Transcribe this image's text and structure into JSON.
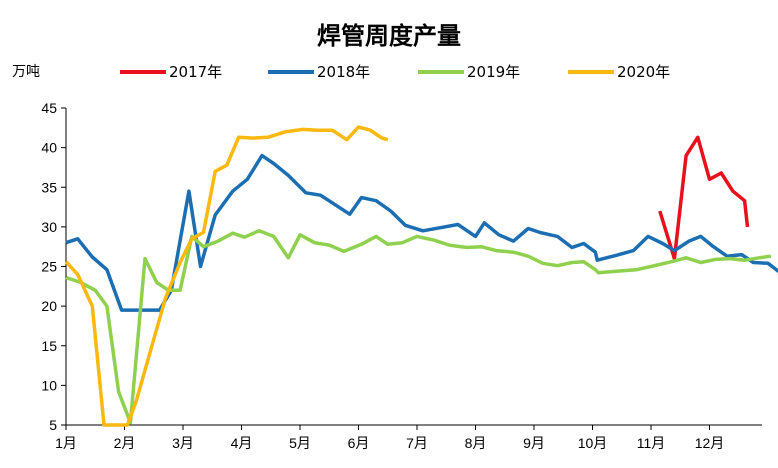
{
  "chart_data": {
    "type": "line",
    "title": "焊管周度产量",
    "ylabel": "万吨",
    "xlabel": "",
    "ylim": [
      5,
      45
    ],
    "yticks": [
      5,
      10,
      15,
      20,
      25,
      30,
      35,
      40,
      45
    ],
    "xlim": [
      1,
      13
    ],
    "x_unit": "month",
    "months": [
      "1月",
      "2月",
      "3月",
      "4月",
      "5月",
      "6月",
      "7月",
      "8月",
      "9月",
      "10月",
      "11月",
      "12月"
    ],
    "grid": false,
    "legend": "top",
    "series": [
      {
        "name": "2017年",
        "color": "#e8101a",
        "points": [
          [
            11.15,
            32.0
          ],
          [
            11.4,
            26.0
          ],
          [
            11.6,
            39.0
          ],
          [
            11.8,
            41.3
          ],
          [
            12.0,
            36.0
          ],
          [
            12.2,
            36.8
          ],
          [
            12.4,
            34.5
          ],
          [
            12.6,
            33.3
          ],
          [
            12.65,
            30.0
          ]
        ]
      },
      {
        "name": "2018年",
        "color": "#1c6eb3",
        "points": [
          [
            1.0,
            28.0
          ],
          [
            1.2,
            28.5
          ],
          [
            1.45,
            26.2
          ],
          [
            1.7,
            24.6
          ],
          [
            1.95,
            19.5
          ],
          [
            2.25,
            19.5
          ],
          [
            2.5,
            19.5
          ],
          [
            2.6,
            19.5
          ],
          [
            2.8,
            22.0
          ],
          [
            3.1,
            34.5
          ],
          [
            3.3,
            25.0
          ],
          [
            3.55,
            31.5
          ],
          [
            3.85,
            34.5
          ],
          [
            4.1,
            36.0
          ],
          [
            4.35,
            39.0
          ],
          [
            4.55,
            38.0
          ],
          [
            4.8,
            36.5
          ],
          [
            5.1,
            34.3
          ],
          [
            5.35,
            34.0
          ],
          [
            5.6,
            32.8
          ],
          [
            5.85,
            31.6
          ],
          [
            6.05,
            33.7
          ],
          [
            6.3,
            33.3
          ],
          [
            6.55,
            32.0
          ],
          [
            6.8,
            30.2
          ],
          [
            7.1,
            29.5
          ],
          [
            7.4,
            29.9
          ],
          [
            7.7,
            30.3
          ],
          [
            8.0,
            28.8
          ],
          [
            8.15,
            30.5
          ],
          [
            8.4,
            29.0
          ],
          [
            8.65,
            28.2
          ],
          [
            8.9,
            29.8
          ],
          [
            9.1,
            29.3
          ],
          [
            9.4,
            28.8
          ],
          [
            9.65,
            27.4
          ],
          [
            9.85,
            27.9
          ],
          [
            10.05,
            26.8
          ],
          [
            10.08,
            25.8
          ],
          [
            10.4,
            26.4
          ],
          [
            10.7,
            27.0
          ],
          [
            10.95,
            28.8
          ],
          [
            11.2,
            27.9
          ],
          [
            11.4,
            27.0
          ],
          [
            11.65,
            28.2
          ],
          [
            11.85,
            28.8
          ],
          [
            12.05,
            27.6
          ],
          [
            12.3,
            26.3
          ],
          [
            12.55,
            26.5
          ],
          [
            12.75,
            25.5
          ],
          [
            13.0,
            25.4
          ],
          [
            13.25,
            24.0
          ]
        ]
      },
      {
        "name": "2019年",
        "color": "#8fd14f",
        "points": [
          [
            1.0,
            23.6
          ],
          [
            1.25,
            23.0
          ],
          [
            1.5,
            22.0
          ],
          [
            1.7,
            20.0
          ],
          [
            1.9,
            9.2
          ],
          [
            2.1,
            5.3
          ],
          [
            2.35,
            26.0
          ],
          [
            2.55,
            23.0
          ],
          [
            2.75,
            22.0
          ],
          [
            2.95,
            22.0
          ],
          [
            3.15,
            28.8
          ],
          [
            3.35,
            27.5
          ],
          [
            3.6,
            28.2
          ],
          [
            3.85,
            29.2
          ],
          [
            4.05,
            28.7
          ],
          [
            4.3,
            29.5
          ],
          [
            4.55,
            28.8
          ],
          [
            4.8,
            26.1
          ],
          [
            5.0,
            29.0
          ],
          [
            5.25,
            28.0
          ],
          [
            5.5,
            27.7
          ],
          [
            5.75,
            26.9
          ],
          [
            6.05,
            27.8
          ],
          [
            6.3,
            28.8
          ],
          [
            6.5,
            27.8
          ],
          [
            6.75,
            28.0
          ],
          [
            7.0,
            28.8
          ],
          [
            7.3,
            28.3
          ],
          [
            7.55,
            27.7
          ],
          [
            7.85,
            27.4
          ],
          [
            8.1,
            27.5
          ],
          [
            8.35,
            27.0
          ],
          [
            8.65,
            26.8
          ],
          [
            8.9,
            26.3
          ],
          [
            9.15,
            25.4
          ],
          [
            9.4,
            25.1
          ],
          [
            9.65,
            25.5
          ],
          [
            9.85,
            25.6
          ],
          [
            10.05,
            24.6
          ],
          [
            10.1,
            24.2
          ],
          [
            10.4,
            24.4
          ],
          [
            10.75,
            24.6
          ],
          [
            11.0,
            25.0
          ],
          [
            11.35,
            25.6
          ],
          [
            11.6,
            26.1
          ],
          [
            11.85,
            25.5
          ],
          [
            12.1,
            25.9
          ],
          [
            12.35,
            26.0
          ],
          [
            12.6,
            25.8
          ],
          [
            12.85,
            26.1
          ],
          [
            13.05,
            26.3
          ]
        ]
      },
      {
        "name": "2020年",
        "color": "#fbb80f",
        "points": [
          [
            1.0,
            25.6
          ],
          [
            1.2,
            24.0
          ],
          [
            1.45,
            20.0
          ],
          [
            1.65,
            5.0
          ],
          [
            2.05,
            5.0
          ],
          [
            2.2,
            8.0
          ],
          [
            2.45,
            14.5
          ],
          [
            2.7,
            21.0
          ],
          [
            2.95,
            25.5
          ],
          [
            3.15,
            28.5
          ],
          [
            3.35,
            29.3
          ],
          [
            3.55,
            37.0
          ],
          [
            3.75,
            37.8
          ],
          [
            3.95,
            41.3
          ],
          [
            4.2,
            41.2
          ],
          [
            4.45,
            41.3
          ],
          [
            4.75,
            42.0
          ],
          [
            5.05,
            42.3
          ],
          [
            5.3,
            42.2
          ],
          [
            5.55,
            42.2
          ],
          [
            5.8,
            41.0
          ],
          [
            6.0,
            42.6
          ],
          [
            6.2,
            42.2
          ],
          [
            6.4,
            41.2
          ],
          [
            6.5,
            41.0
          ]
        ]
      }
    ]
  }
}
